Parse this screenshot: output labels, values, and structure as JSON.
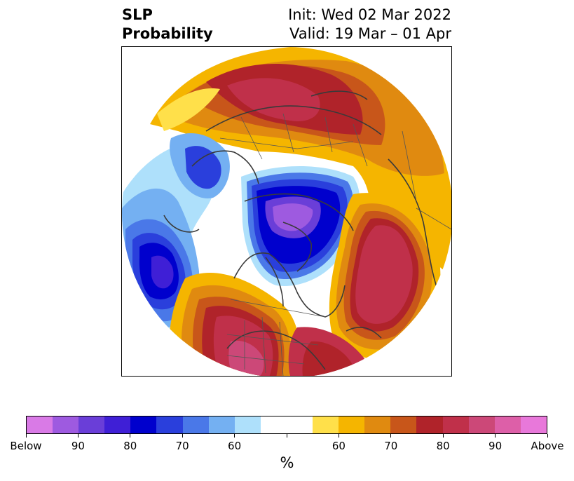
{
  "title": {
    "left_line1": "SLP",
    "left_line2": "Probability",
    "right_line1": "Init: Wed 02 Mar 2022",
    "right_line2": "Valid: 19 Mar – 01 Apr"
  },
  "colorbar": {
    "units": "%",
    "colors": [
      "#d97ae6",
      "#9e5ae0",
      "#6a3ed8",
      "#3f1fd6",
      "#0000cd",
      "#2a3fdc",
      "#4a78e8",
      "#74b0f2",
      "#aee0fb",
      "#ffffff",
      "#ffffff",
      "#ffe04a",
      "#f5b500",
      "#e08a10",
      "#c8561a",
      "#b0232a",
      "#c0304a",
      "#cc4878",
      "#dd5fa8",
      "#e878da"
    ],
    "tick_labels": [
      "Below",
      "90",
      "80",
      "70",
      "60",
      "",
      "60",
      "70",
      "80",
      "90",
      "Above"
    ]
  },
  "map": {
    "projection": "north-polar-stereographic",
    "variable": "sea-level-pressure probability",
    "features": [
      "Canada negative anomaly (below)",
      "North Pacific negative anomaly (below)",
      "Atlantic positive anomaly (above)",
      "Southern US positive anomaly (above)",
      "Siberia positive anomaly (above)"
    ]
  }
}
